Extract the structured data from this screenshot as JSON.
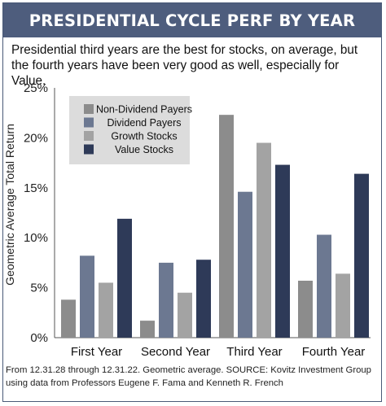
{
  "header": {
    "title": "PRESIDENTIAL CYCLE PERF BY YEAR",
    "subtitle": "Presidential third years are the best for stocks, on average, but the fourth years have been very good as well, especially for Value."
  },
  "footnote": "From 12.31.28 through 12.31.22. Geometric average. SOURCE: Kovitz Investment Group using data from Professors Eugene F. Fama and Kenneth R. French",
  "colors": {
    "banner": "#4e5d7d",
    "non_dividend": "#8c8c8c",
    "dividend": "#6c7891",
    "growth": "#a3a3a3",
    "value": "#2e3a58",
    "legend_bg": "#dcdcdc"
  },
  "chart_data": {
    "type": "bar",
    "title": "",
    "xlabel": "",
    "ylabel": "Geometric Average Total Return",
    "ylim": [
      0,
      25
    ],
    "yticks": [
      "0%",
      "5%",
      "10%",
      "15%",
      "20%",
      "25%"
    ],
    "grid": false,
    "legend_position": "top-left",
    "categories": [
      "First Year",
      "Second Year",
      "Third Year",
      "Fourth Year"
    ],
    "series": [
      {
        "name": "Non-Dividend Payers",
        "color": "#8c8c8c",
        "values": [
          3.8,
          1.7,
          22.3,
          5.7
        ]
      },
      {
        "name": "Dividend Payers",
        "color": "#6c7891",
        "values": [
          8.2,
          7.5,
          14.6,
          10.3
        ]
      },
      {
        "name": "Growth Stocks",
        "color": "#a3a3a3",
        "values": [
          5.5,
          4.5,
          19.5,
          6.4
        ]
      },
      {
        "name": "Value Stocks",
        "color": "#2e3a58",
        "values": [
          11.9,
          7.8,
          17.3,
          16.4
        ]
      }
    ]
  }
}
